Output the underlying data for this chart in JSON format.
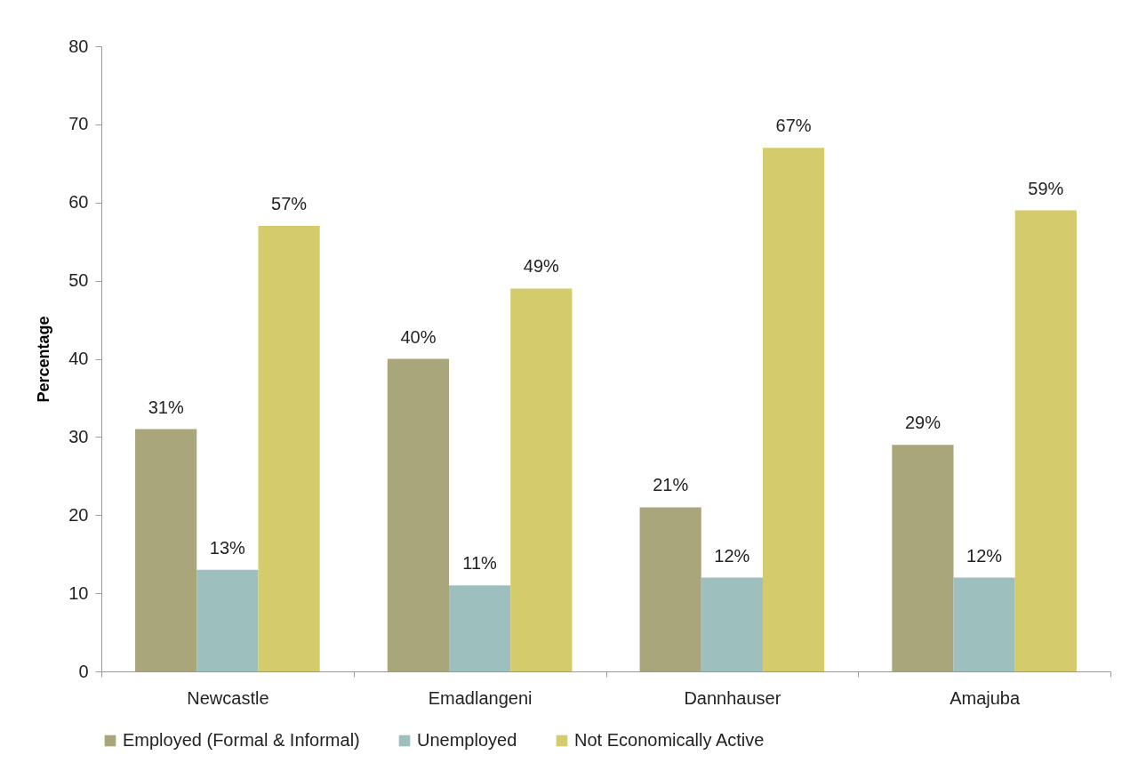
{
  "chart_data": {
    "type": "bar",
    "ylabel": "Percentage",
    "categories": [
      "Newcastle",
      "Emadlangeni",
      "Dannhauser",
      "Amajuba"
    ],
    "series": [
      {
        "name": "Employed (Formal & Informal)",
        "color": "#a9a67c",
        "values": [
          31,
          40,
          21,
          29
        ],
        "value_labels": [
          "31%",
          "40%",
          "21%",
          "29%"
        ]
      },
      {
        "name": "Unemployed",
        "color": "#9dbfbe",
        "values": [
          13,
          11,
          12,
          12
        ],
        "value_labels": [
          "13%",
          "11%",
          "12%",
          "12%"
        ]
      },
      {
        "name": "Not Economically Active",
        "color": "#d4cc6c",
        "values": [
          57,
          49,
          67,
          59
        ],
        "value_labels": [
          "57%",
          "49%",
          "67%",
          "59%"
        ]
      }
    ],
    "ylim": [
      0,
      80
    ],
    "yticks": [
      0,
      10,
      20,
      30,
      40,
      50,
      60,
      70,
      80
    ],
    "grid": false,
    "legend": "bottom"
  }
}
